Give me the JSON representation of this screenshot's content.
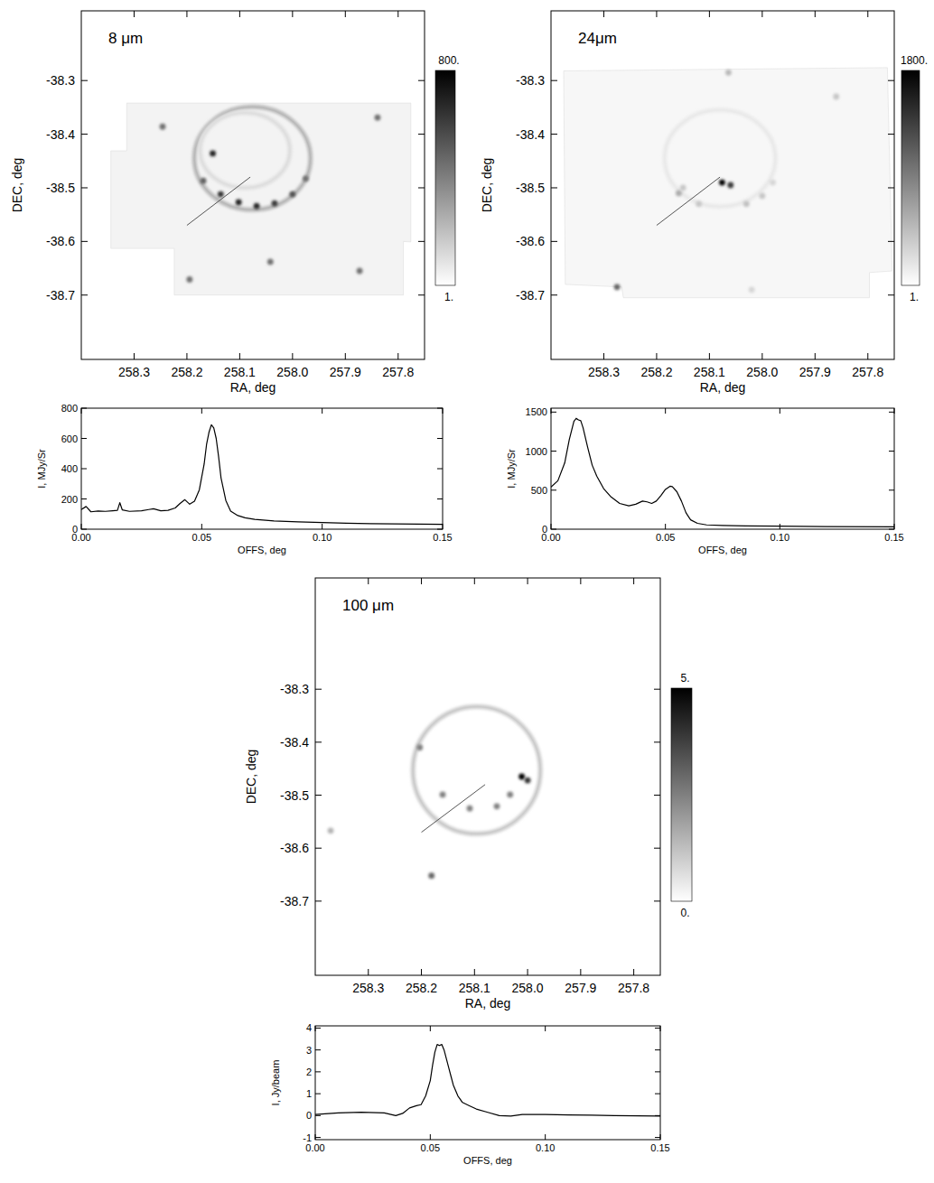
{
  "chart_data": [
    {
      "type": "image",
      "title": "8 μm",
      "xlabel": "RA, deg",
      "ylabel": "DEC, deg",
      "xlim": [
        258.4,
        257.75
      ],
      "ylim": [
        -38.82,
        -38.17
      ],
      "xticks": [
        258.3,
        258.2,
        258.1,
        {
          "value": 258,
          "label": "258.0"
        },
        257.9,
        257.8
      ],
      "yticks": [
        -38.3,
        -38.4,
        -38.5,
        -38.6,
        -38.7
      ],
      "colorbar": {
        "range": [
          1,
          800
        ],
        "ticks": [
          {
            "value": 800,
            "label": "800."
          },
          {
            "value": 1,
            "label": "1."
          }
        ]
      },
      "background": 40,
      "coverage": [
        [
          258.314,
          -38.342
        ],
        [
          257.776,
          -38.342
        ],
        [
          257.776,
          -38.601
        ],
        [
          257.79,
          -38.6
        ],
        [
          257.79,
          -38.7
        ],
        [
          258.224,
          -38.7
        ],
        [
          258.224,
          -38.613
        ],
        [
          258.344,
          -38.613
        ],
        [
          258.344,
          -38.431
        ],
        [
          258.314,
          -38.431
        ]
      ],
      "shells": [
        {
          "ra": 258.076,
          "dec": -38.445,
          "r_ra": 0.11,
          "r_dec": 0.096,
          "intensity": 220
        },
        {
          "ra": 258.09,
          "dec": -38.43,
          "r_ra": 0.085,
          "r_dec": 0.07,
          "intensity": 100
        }
      ],
      "sources": [
        {
          "ra": 258.169,
          "dec": -38.487,
          "intensity": 500
        },
        {
          "ra": 258.136,
          "dec": -38.512,
          "intensity": 650
        },
        {
          "ra": 258.102,
          "dec": -38.527,
          "intensity": 700
        },
        {
          "ra": 258.068,
          "dec": -38.534,
          "intensity": 680
        },
        {
          "ra": 258.034,
          "dec": -38.529,
          "intensity": 620
        },
        {
          "ra": 258.0,
          "dec": -38.512,
          "intensity": 550
        },
        {
          "ra": 257.975,
          "dec": -38.483,
          "intensity": 450
        },
        {
          "ra": 258.151,
          "dec": -38.436,
          "intensity": 700
        },
        {
          "ra": 258.246,
          "dec": -38.386,
          "intensity": 450
        },
        {
          "ra": 257.873,
          "dec": -38.655,
          "intensity": 450
        },
        {
          "ra": 257.839,
          "dec": -38.369,
          "intensity": 450
        },
        {
          "ra": 258.042,
          "dec": -38.638,
          "intensity": 450
        },
        {
          "ra": 258.195,
          "dec": -38.671,
          "intensity": 450
        }
      ],
      "cut": [
        [
          258.2,
          -38.57
        ],
        [
          258.08,
          -38.48
        ]
      ]
    },
    {
      "type": "line",
      "xlabel": "OFFS, deg",
      "ylabel": "I, MJy/Sr",
      "color": "#000000",
      "xlim": [
        0,
        0.15
      ],
      "ylim": [
        0,
        800
      ],
      "xticks": [
        {
          "value": 0,
          "label": "0.00"
        },
        0.05,
        {
          "value": 0.1,
          "label": "0.10"
        },
        0.15
      ],
      "yticks": [
        0,
        200,
        400,
        600,
        800
      ],
      "x": [
        0,
        0.002,
        0.004,
        0.007,
        0.01,
        0.013,
        0.015,
        0.016,
        0.017,
        0.02,
        0.025,
        0.028,
        0.03,
        0.033,
        0.036,
        0.039,
        0.041,
        0.043,
        0.045,
        0.047,
        0.049,
        0.051,
        0.052,
        0.053,
        0.054,
        0.055,
        0.056,
        0.057,
        0.058,
        0.06,
        0.062,
        0.065,
        0.068,
        0.072,
        0.08,
        0.09,
        0.1,
        0.11,
        0.12,
        0.13,
        0.14,
        0.15
      ],
      "values": [
        130,
        150,
        115,
        120,
        118,
        122,
        125,
        175,
        128,
        118,
        122,
        130,
        135,
        122,
        125,
        140,
        170,
        195,
        165,
        185,
        260,
        430,
        560,
        640,
        690,
        670,
        600,
        480,
        340,
        190,
        120,
        90,
        75,
        65,
        55,
        48,
        44,
        40,
        37,
        35,
        33,
        32
      ]
    },
    {
      "type": "image",
      "title": "24μm",
      "xlabel": "RA, deg",
      "ylabel": "DEC, deg",
      "xlim": [
        258.4,
        257.75
      ],
      "ylim": [
        -38.82,
        -38.17
      ],
      "xticks": [
        258.3,
        258.2,
        258.1,
        {
          "value": 258,
          "label": "258.0"
        },
        257.9,
        257.8
      ],
      "yticks": [
        -38.3,
        -38.4,
        -38.5,
        -38.6,
        -38.7
      ],
      "colorbar": {
        "range": [
          1,
          1800
        ],
        "ticks": [
          {
            "value": 1800,
            "label": "1800."
          },
          {
            "value": 1,
            "label": "1."
          }
        ]
      },
      "background": 60,
      "coverage": [
        [
          258.376,
          -38.282
        ],
        [
          257.763,
          -38.276
        ],
        [
          257.754,
          -38.655
        ],
        [
          257.797,
          -38.658
        ],
        [
          257.797,
          -38.705
        ],
        [
          258.263,
          -38.705
        ],
        [
          258.266,
          -38.685
        ],
        [
          258.373,
          -38.68
        ]
      ],
      "shells": [
        {
          "ra": 258.08,
          "dec": -38.445,
          "r_ra": 0.105,
          "r_dec": 0.09,
          "intensity": 150
        }
      ],
      "sources": [
        {
          "ra": 258.076,
          "dec": -38.49,
          "intensity": 1800
        },
        {
          "ra": 258.06,
          "dec": -38.495,
          "intensity": 1400
        },
        {
          "ra": 258.158,
          "dec": -38.51,
          "intensity": 600
        },
        {
          "ra": 258.15,
          "dec": -38.5,
          "intensity": 400
        },
        {
          "ra": 258.03,
          "dec": -38.53,
          "intensity": 450
        },
        {
          "ra": 258.0,
          "dec": -38.515,
          "intensity": 400
        },
        {
          "ra": 257.98,
          "dec": -38.49,
          "intensity": 300
        },
        {
          "ra": 258.12,
          "dec": -38.53,
          "intensity": 400
        },
        {
          "ra": 258.064,
          "dec": -38.285,
          "intensity": 500
        },
        {
          "ra": 258.275,
          "dec": -38.685,
          "intensity": 1100
        },
        {
          "ra": 257.86,
          "dec": -38.33,
          "intensity": 400
        },
        {
          "ra": 258.02,
          "dec": -38.69,
          "intensity": 300
        }
      ],
      "cut": [
        [
          258.2,
          -38.57
        ],
        [
          258.08,
          -38.48
        ]
      ]
    },
    {
      "type": "line",
      "xlabel": "OFFS, deg",
      "ylabel": "I, MJy/Sr",
      "color": "#000000",
      "xlim": [
        0,
        0.15
      ],
      "ylim": [
        0,
        1550
      ],
      "xticks": [
        {
          "value": 0,
          "label": "0.00"
        },
        0.05,
        {
          "value": 0.1,
          "label": "0.10"
        },
        0.15
      ],
      "yticks": [
        0,
        500,
        1000,
        1500
      ],
      "x": [
        0,
        0.003,
        0.006,
        0.008,
        0.01,
        0.011,
        0.012,
        0.013,
        0.014,
        0.016,
        0.018,
        0.02,
        0.023,
        0.026,
        0.03,
        0.034,
        0.037,
        0.04,
        0.042,
        0.044,
        0.046,
        0.048,
        0.05,
        0.052,
        0.053,
        0.055,
        0.057,
        0.059,
        0.061,
        0.064,
        0.068,
        0.075,
        0.085,
        0.1,
        0.12,
        0.15
      ],
      "values": [
        540,
        620,
        850,
        1150,
        1380,
        1420,
        1400,
        1390,
        1300,
        1050,
        820,
        680,
        520,
        420,
        330,
        300,
        320,
        360,
        350,
        330,
        360,
        430,
        510,
        550,
        545,
        480,
        360,
        210,
        120,
        75,
        55,
        48,
        42,
        38,
        34,
        30
      ]
    },
    {
      "type": "image",
      "title": "100 μm",
      "xlabel": "RA, deg",
      "ylabel": "DEC, deg",
      "xlim": [
        258.4,
        257.75
      ],
      "ylim": [
        -38.84,
        -38.09
      ],
      "xticks": [
        258.3,
        258.2,
        258.1,
        {
          "value": 258,
          "label": "258.0"
        },
        257.9,
        257.8
      ],
      "yticks": [
        -38.3,
        -38.4,
        -38.5,
        -38.6,
        -38.7
      ],
      "colorbar": {
        "range": [
          0,
          5
        ],
        "ticks": [
          {
            "value": 5,
            "label": "5."
          },
          {
            "value": 0,
            "label": "0."
          }
        ]
      },
      "shells": [
        {
          "ra": 258.096,
          "dec": -38.453,
          "r_ra": 0.12,
          "r_dec": 0.12,
          "intensity": 1
        }
      ],
      "sources": [
        {
          "ra": 258.011,
          "dec": -38.465,
          "intensity": 5
        },
        {
          "ra": 258.0,
          "dec": -38.472,
          "intensity": 4
        },
        {
          "ra": 258.16,
          "dec": -38.499,
          "intensity": 2.5
        },
        {
          "ra": 258.109,
          "dec": -38.525,
          "intensity": 2.5
        },
        {
          "ra": 258.058,
          "dec": -38.521,
          "intensity": 2.5
        },
        {
          "ra": 258.033,
          "dec": -38.499,
          "intensity": 2.5
        },
        {
          "ra": 258.203,
          "dec": -38.41,
          "intensity": 2.5
        },
        {
          "ra": 258.181,
          "dec": -38.652,
          "intensity": 3
        },
        {
          "ra": 258.371,
          "dec": -38.567,
          "intensity": 1.5
        }
      ],
      "cut": [
        [
          258.2,
          -38.57
        ],
        [
          258.08,
          -38.48
        ]
      ]
    },
    {
      "type": "line",
      "xlabel": "OFFS, deg",
      "ylabel": "I, Jy/beam",
      "color": "#000000",
      "xlim": [
        0,
        0.15
      ],
      "ylim": [
        -1.1,
        4.1
      ],
      "xticks": [
        {
          "value": 0,
          "label": "0.00"
        },
        0.05,
        {
          "value": 0.1,
          "label": "0.10"
        },
        0.15
      ],
      "yticks": [
        -1,
        0,
        1,
        2,
        3,
        4
      ],
      "x": [
        0,
        0.01,
        0.02,
        0.03,
        0.035,
        0.038,
        0.041,
        0.044,
        0.046,
        0.048,
        0.05,
        0.051,
        0.052,
        0.053,
        0.054,
        0.055,
        0.056,
        0.057,
        0.058,
        0.059,
        0.06,
        0.062,
        0.064,
        0.067,
        0.07,
        0.075,
        0.08,
        0.085,
        0.09,
        0.1,
        0.11,
        0.12,
        0.13,
        0.15
      ],
      "values": [
        0.05,
        0.12,
        0.15,
        0.12,
        0.0,
        0.1,
        0.35,
        0.45,
        0.5,
        0.9,
        1.6,
        2.3,
        2.9,
        3.25,
        3.2,
        3.25,
        3.0,
        2.6,
        2.2,
        1.8,
        1.4,
        0.9,
        0.6,
        0.45,
        0.3,
        0.15,
        0.0,
        -0.02,
        0.05,
        0.05,
        0.03,
        0.02,
        0.0,
        -0.02
      ]
    }
  ]
}
